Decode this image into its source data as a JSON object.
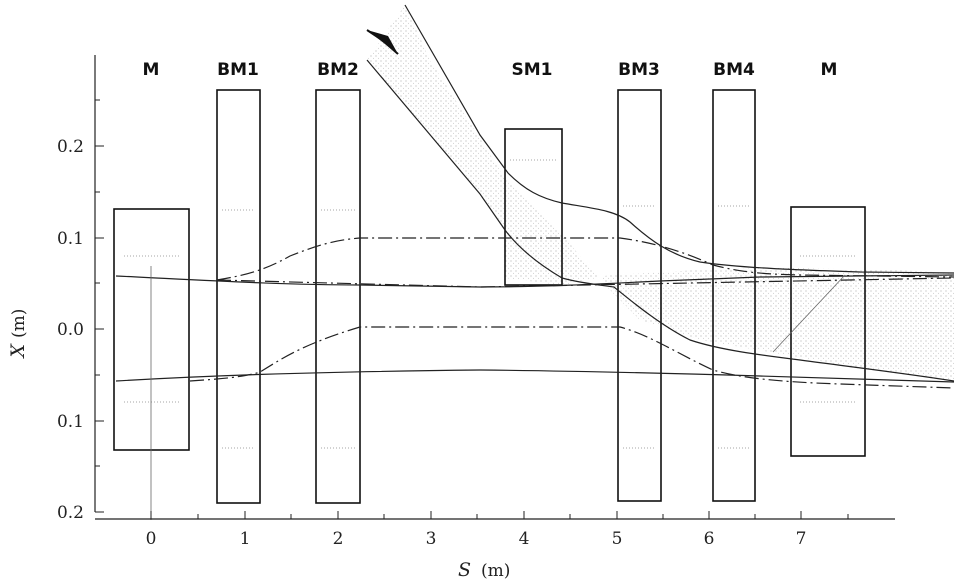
{
  "diagram": {
    "magnets": [
      {
        "label": "M"
      },
      {
        "label": "BM1"
      },
      {
        "label": "BM2"
      },
      {
        "label": "SM1"
      },
      {
        "label": "BM3"
      },
      {
        "label": "BM4"
      },
      {
        "label": "M"
      }
    ],
    "x_axis": {
      "symbol": "S",
      "unit": "(m)",
      "ticks": [
        "0",
        "1",
        "2",
        "3",
        "4",
        "5",
        "6",
        "7"
      ]
    },
    "y_axis": {
      "symbol": "X",
      "unit": "(m)",
      "ticks": [
        "0.2",
        "0.1",
        "0.0",
        "0.1",
        "0.2"
      ]
    }
  }
}
